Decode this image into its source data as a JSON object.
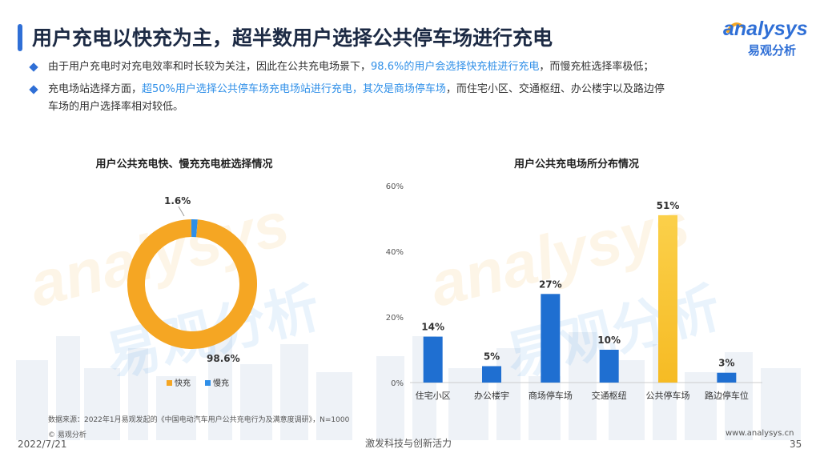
{
  "header": {
    "title": "用户充电以快充为主，超半数用户选择公共停车场进行充电",
    "logo_text": "analysys",
    "logo_sub": "易观分析"
  },
  "bullets": [
    {
      "before": "由于用户充电时对充电效率和时长较为关注，因此在公共充电场景下，",
      "highlight": "98.6%的用户会选择快充桩进行充电",
      "after": "，而慢充桩选择率极低；"
    },
    {
      "before": "充电场站选择方面，",
      "highlight": "超50%用户选择公共停车场充电场站进行充电，其次是商场停车场",
      "after": "，而住宅小区、交通枢纽、办公楼宇以及路边停",
      "line2": "车场的用户选择率相对较低。"
    }
  ],
  "watermark": {
    "latin": "analysys",
    "cn": "易观分析"
  },
  "chart_data": [
    {
      "type": "pie",
      "title": "用户公共充电快、慢充充电桩选择情况",
      "slices": [
        {
          "name": "快充",
          "value": 98.6,
          "label": "98.6%",
          "color": "#f5a623"
        },
        {
          "name": "慢充",
          "value": 1.6,
          "label": "1.6%",
          "color": "#2f8fe8"
        }
      ],
      "legend_position": "bottom"
    },
    {
      "type": "bar",
      "title": "用户公共充电场所分布情况",
      "categories": [
        "住宅小区",
        "办公楼宇",
        "商场停车场",
        "交通枢纽",
        "公共停车场",
        "路边停车位"
      ],
      "values": [
        14,
        5,
        27,
        10,
        51,
        3
      ],
      "labels": [
        "14%",
        "5%",
        "27%",
        "10%",
        "51%",
        "3%"
      ],
      "ylim": [
        0,
        60
      ],
      "yticks": [
        "0%",
        "20%",
        "40%",
        "60%"
      ],
      "colors": {
        "bar": "#1f6fd1",
        "highlight": "#f6bb24"
      },
      "grid": false
    }
  ],
  "footer": {
    "source": "数据来源：2022年1月易观发起的《中国电动汽车用户公共充电行为及满意度调研》，N=1000",
    "copyright": "© 易观分析",
    "date": "2022/7/21",
    "slogan": "激发科技与创新活力",
    "website": "www.analysys.cn",
    "page": "35"
  }
}
